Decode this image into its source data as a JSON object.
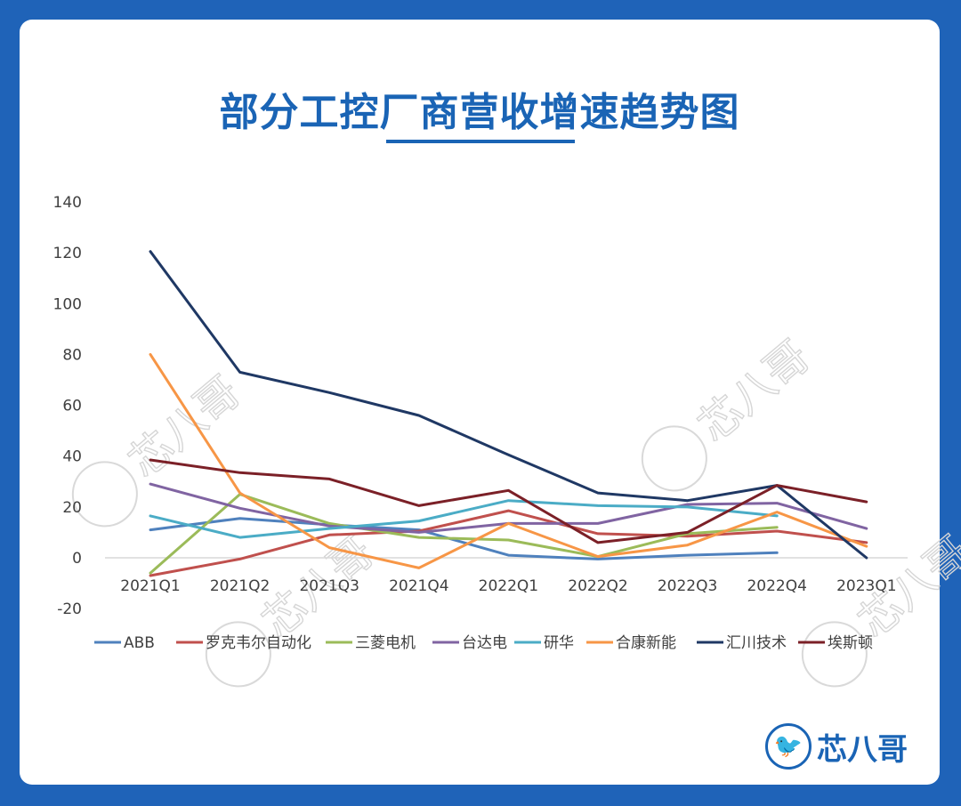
{
  "title": "部分工控厂商营收增速趋势图",
  "brand": {
    "name": "芯八哥",
    "watermark_text": "芯八哥"
  },
  "colors": {
    "background": "#1f63b8",
    "accent": "#1a64b5"
  },
  "chart_data": {
    "type": "line",
    "categories": [
      "2021Q1",
      "2021Q2",
      "2021Q3",
      "2021Q4",
      "2022Q1",
      "2022Q2",
      "2022Q3",
      "2022Q4",
      "2023Q1"
    ],
    "ylim": [
      -20,
      140
    ],
    "yticks": [
      -20,
      0,
      20,
      40,
      60,
      80,
      100,
      120,
      140
    ],
    "legend_position": "bottom",
    "grid": false,
    "series": [
      {
        "name": "ABB",
        "color": "#4f81bd",
        "values": [
          11,
          15.5,
          13,
          11,
          1,
          -0.5,
          1,
          2,
          null
        ]
      },
      {
        "name": "罗克韦尔自动化",
        "color": "#c0504d",
        "values": [
          -7,
          -0.5,
          9,
          10.5,
          18.5,
          9.5,
          8.5,
          10.5,
          6
        ]
      },
      {
        "name": "三菱电机",
        "color": "#9bbb59",
        "values": [
          -6,
          25,
          13.5,
          8,
          7,
          0.5,
          9.5,
          12,
          null
        ]
      },
      {
        "name": "台达电",
        "color": "#8064a2",
        "values": [
          29,
          19.5,
          12.5,
          10,
          13.5,
          13.5,
          21,
          21.5,
          11.5
        ]
      },
      {
        "name": "研华",
        "color": "#4bacc6",
        "values": [
          16.5,
          8,
          11.5,
          14.5,
          22.5,
          20.5,
          20,
          16.5,
          null
        ]
      },
      {
        "name": "合康新能",
        "color": "#f79646",
        "values": [
          80,
          25.5,
          4,
          -4,
          13.5,
          0.5,
          5,
          18,
          4.5
        ]
      },
      {
        "name": "汇川技术",
        "color": "#1f3864",
        "values": [
          120.5,
          73,
          65,
          56,
          40.5,
          25.5,
          22.5,
          28.5,
          0
        ]
      },
      {
        "name": "埃斯顿",
        "color": "#7b2027",
        "values": [
          38.5,
          33.5,
          31,
          20.5,
          26.5,
          6,
          10,
          28.5,
          22
        ]
      }
    ]
  }
}
